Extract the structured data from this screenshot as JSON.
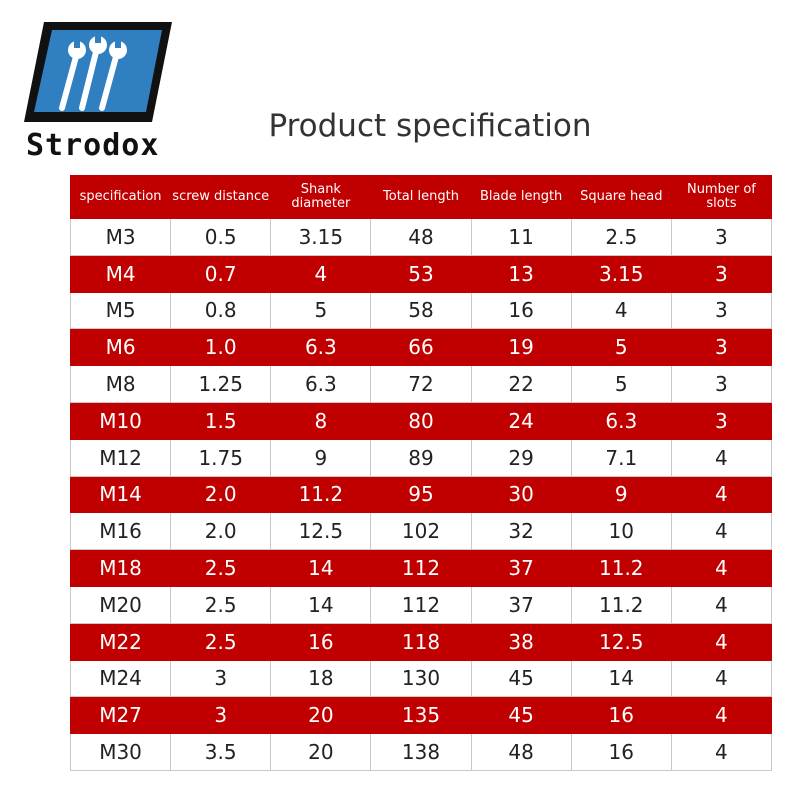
{
  "logo": {
    "text": "Strodox"
  },
  "title": "Product specification",
  "table": {
    "headers": [
      "specification",
      "screw distance",
      "Shank diameter",
      "Total length",
      "Blade length",
      "Square head",
      "Number of slots"
    ],
    "rows": [
      [
        "M3",
        "0.5",
        "3.15",
        "48",
        "11",
        "2.5",
        "3"
      ],
      [
        "M4",
        "0.7",
        "4",
        "53",
        "13",
        "3.15",
        "3"
      ],
      [
        "M5",
        "0.8",
        "5",
        "58",
        "16",
        "4",
        "3"
      ],
      [
        "M6",
        "1.0",
        "6.3",
        "66",
        "19",
        "5",
        "3"
      ],
      [
        "M8",
        "1.25",
        "6.3",
        "72",
        "22",
        "5",
        "3"
      ],
      [
        "M10",
        "1.5",
        "8",
        "80",
        "24",
        "6.3",
        "3"
      ],
      [
        "M12",
        "1.75",
        "9",
        "89",
        "29",
        "7.1",
        "4"
      ],
      [
        "M14",
        "2.0",
        "11.2",
        "95",
        "30",
        "9",
        "4"
      ],
      [
        "M16",
        "2.0",
        "12.5",
        "102",
        "32",
        "10",
        "4"
      ],
      [
        "M18",
        "2.5",
        "14",
        "112",
        "37",
        "11.2",
        "4"
      ],
      [
        "M20",
        "2.5",
        "14",
        "112",
        "37",
        "11.2",
        "4"
      ],
      [
        "M22",
        "2.5",
        "16",
        "118",
        "38",
        "12.5",
        "4"
      ],
      [
        "M24",
        "3",
        "18",
        "130",
        "45",
        "14",
        "4"
      ],
      [
        "M27",
        "3",
        "20",
        "135",
        "45",
        "16",
        "4"
      ],
      [
        "M30",
        "3.5",
        "20",
        "138",
        "48",
        "16",
        "4"
      ]
    ]
  }
}
